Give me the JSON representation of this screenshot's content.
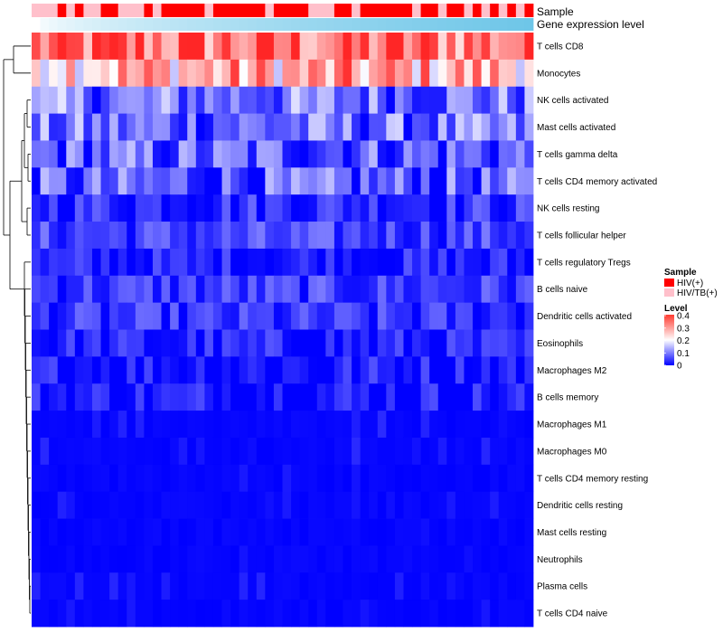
{
  "chart_data": {
    "type": "heatmap",
    "annotation_titles": {
      "sample": "Sample",
      "level": "Gene expression level"
    },
    "rows": [
      "T cells CD8",
      "Monocytes",
      "NK cells activated",
      "Mast cells activated",
      "T cells gamma delta",
      "T cells CD4 memory activated",
      "NK cells resting",
      "T cells follicular helper",
      "T cells regulatory  Tregs",
      "B cells naive",
      "Dendritic cells activated",
      "Eosinophils",
      "Macrophages M2",
      "B cells memory",
      "Macrophages M1",
      "Macrophages M0",
      "T cells CD4 memory resting",
      "Dendritic cells resting",
      "Mast cells resting",
      "Neutrophils",
      "Plasma cells",
      "T cells CD4 naive"
    ],
    "sample_groups": [
      "HIV/TB(+)",
      "HIV/TB(+)",
      "HIV/TB(+)",
      "HIV(+)",
      "HIV/TB(+)",
      "HIV(+)",
      "HIV/TB(+)",
      "HIV/TB(+)",
      "HIV(+)",
      "HIV(+)",
      "HIV/TB(+)",
      "HIV/TB(+)",
      "HIV/TB(+)",
      "HIV(+)",
      "HIV/TB(+)",
      "HIV(+)",
      "HIV(+)",
      "HIV(+)",
      "HIV(+)",
      "HIV(+)",
      "HIV/TB(+)",
      "HIV(+)",
      "HIV(+)",
      "HIV(+)",
      "HIV(+)",
      "HIV(+)",
      "HIV(+)",
      "HIV/TB(+)",
      "HIV(+)",
      "HIV(+)",
      "HIV(+)",
      "HIV(+)",
      "HIV/TB(+)",
      "HIV/TB(+)",
      "HIV/TB(+)",
      "HIV(+)",
      "HIV(+)",
      "HIV/TB(+)",
      "HIV(+)",
      "HIV(+)",
      "HIV(+)",
      "HIV(+)",
      "HIV(+)",
      "HIV(+)",
      "HIV/TB(+)",
      "HIV(+)",
      "HIV(+)",
      "HIV/TB(+)",
      "HIV(+)",
      "HIV(+)",
      "HIV/TB(+)",
      "HIV(+)",
      "HIV/TB(+)",
      "HIV(+)",
      "HIV/TB(+)",
      "HIV(+)",
      "HIV/TB(+)",
      "HIV(+)"
    ],
    "legend": {
      "sample_title": "Sample",
      "sample_items": [
        "HIV(+)",
        "HIV/TB(+)"
      ],
      "sample_colors": [
        "#ff0000",
        "#ffc0cb"
      ],
      "level_title": "Level",
      "level_ticks": [
        "0.4",
        "0.3",
        "0.2",
        "0.1",
        "0"
      ],
      "level_range": [
        0,
        0.4
      ]
    },
    "colors": {
      "low": "#0000ff",
      "mid": "#ffffff",
      "high": "#ff0000",
      "level_bar_start": "#ffffff",
      "level_bar_end": "#6ec6e8"
    },
    "row_means": [
      0.33,
      0.27,
      0.09,
      0.08,
      0.07,
      0.06,
      0.04,
      0.05,
      0.02,
      0.045,
      0.035,
      0.02,
      0.02,
      0.02,
      0.015,
      0.015,
      0.006,
      0.006,
      0.003,
      0.002,
      0.012,
      0.006
    ]
  }
}
